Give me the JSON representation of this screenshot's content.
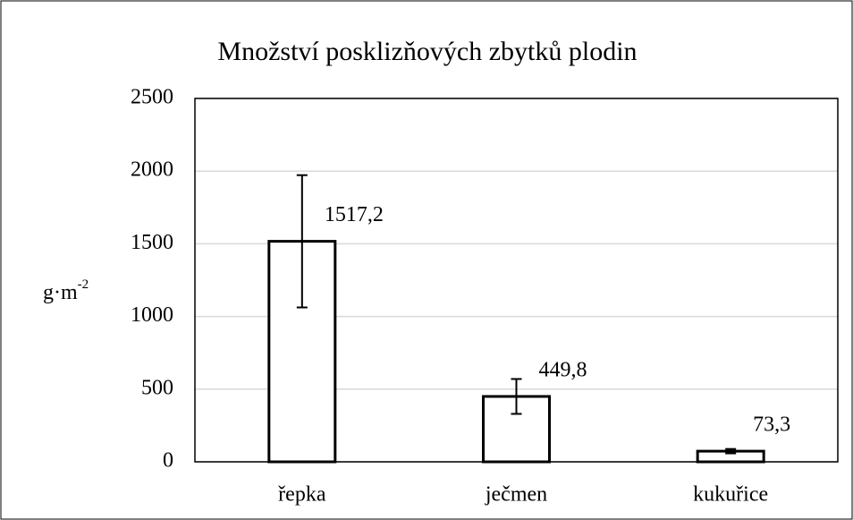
{
  "chart_data": {
    "type": "bar",
    "title": "Množství posklizňových zbytků plodin",
    "ylabel": "g·m",
    "ylabel_superscript": "-2",
    "categories": [
      "řepka",
      "ječmen",
      "kukuřice"
    ],
    "values": [
      1517.2,
      449.8,
      73.3
    ],
    "value_labels": [
      "1517,2",
      "449,8",
      "73,3"
    ],
    "errors": [
      455,
      120,
      15
    ],
    "color": "#ffffff",
    "edge_color": "#000000",
    "ylim": [
      0,
      2500
    ],
    "yticks": [
      0,
      500,
      1000,
      1500,
      2000,
      2500
    ],
    "grid": true
  }
}
